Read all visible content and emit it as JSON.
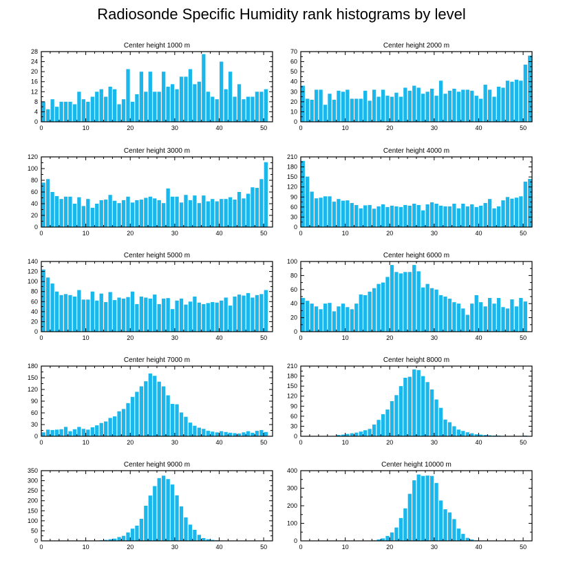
{
  "figure_title": "Radiosonde Specific Humidity rank histograms by level",
  "bar_color": "#1ab7ec",
  "chart_data": [
    {
      "type": "bar",
      "title": "Center height 1000 m",
      "xlim": [
        0,
        52
      ],
      "xticks": [
        0,
        10,
        20,
        30,
        40,
        50
      ],
      "ylim": [
        0,
        28
      ],
      "yticks": [
        0,
        4,
        8,
        12,
        16,
        20,
        24,
        28
      ],
      "values": [
        8,
        5,
        9,
        6,
        8,
        8,
        8,
        7,
        12,
        9,
        8,
        10,
        12,
        13,
        10,
        14,
        13,
        7,
        9,
        21,
        8,
        11,
        20,
        12,
        20,
        12,
        12,
        20,
        14,
        15,
        13,
        18,
        18,
        21,
        15,
        16,
        27,
        12,
        10,
        9,
        24,
        13,
        20,
        10,
        15,
        9,
        10,
        10,
        12,
        12,
        13
      ]
    },
    {
      "type": "bar",
      "title": "Center height 2000 m",
      "xlim": [
        0,
        52
      ],
      "xticks": [
        0,
        10,
        20,
        30,
        40,
        50
      ],
      "ylim": [
        0,
        70
      ],
      "yticks": [
        0,
        10,
        20,
        30,
        40,
        50,
        60,
        70
      ],
      "values": [
        36,
        23,
        22,
        32,
        32,
        17,
        28,
        22,
        31,
        30,
        32,
        23,
        23,
        23,
        31,
        21,
        32,
        25,
        32,
        26,
        25,
        29,
        25,
        34,
        31,
        36,
        34,
        28,
        30,
        33,
        26,
        41,
        28,
        31,
        33,
        30,
        32,
        32,
        31,
        26,
        23,
        37,
        32,
        25,
        35,
        34,
        41,
        40,
        42,
        41,
        57,
        66
      ]
    },
    {
      "type": "bar",
      "title": "Center height 3000 m",
      "xlim": [
        0,
        52
      ],
      "xticks": [
        0,
        10,
        20,
        30,
        40,
        50
      ],
      "ylim": [
        0,
        120
      ],
      "yticks": [
        0,
        20,
        40,
        60,
        80,
        100,
        120
      ],
      "values": [
        76,
        82,
        60,
        53,
        48,
        52,
        52,
        40,
        51,
        36,
        48,
        33,
        40,
        46,
        47,
        55,
        45,
        41,
        46,
        52,
        42,
        46,
        47,
        50,
        52,
        49,
        46,
        41,
        66,
        52,
        52,
        42,
        55,
        46,
        54,
        41,
        54,
        44,
        48,
        44,
        48,
        48,
        51,
        47,
        60,
        49,
        57,
        68,
        67,
        82,
        111
      ]
    },
    {
      "type": "bar",
      "title": "Center height 4000 m",
      "xlim": [
        0,
        52
      ],
      "xticks": [
        0,
        10,
        20,
        30,
        40,
        50
      ],
      "ylim": [
        0,
        210
      ],
      "yticks": [
        0,
        30,
        60,
        90,
        120,
        150,
        180,
        210
      ],
      "values": [
        198,
        151,
        106,
        86,
        88,
        92,
        92,
        76,
        84,
        79,
        80,
        72,
        66,
        56,
        65,
        66,
        55,
        62,
        68,
        60,
        64,
        62,
        60,
        66,
        64,
        70,
        66,
        50,
        68,
        74,
        70,
        64,
        62,
        62,
        70,
        56,
        70,
        62,
        68,
        60,
        64,
        72,
        84,
        56,
        62,
        80,
        90,
        85,
        88,
        92,
        136,
        144
      ]
    },
    {
      "type": "bar",
      "title": "Center height 5000 m",
      "xlim": [
        0,
        52
      ],
      "xticks": [
        0,
        10,
        20,
        30,
        40,
        50
      ],
      "ylim": [
        0,
        140
      ],
      "yticks": [
        0,
        20,
        40,
        60,
        80,
        100,
        120,
        140
      ],
      "values": [
        124,
        108,
        96,
        80,
        73,
        75,
        73,
        70,
        83,
        64,
        64,
        80,
        62,
        76,
        59,
        79,
        63,
        68,
        66,
        69,
        80,
        55,
        70,
        68,
        66,
        74,
        55,
        66,
        67,
        45,
        62,
        66,
        54,
        60,
        70,
        58,
        55,
        57,
        59,
        58,
        62,
        68,
        52,
        70,
        74,
        72,
        77,
        68,
        73,
        75,
        83
      ]
    },
    {
      "type": "bar",
      "title": "Center height 6000 m",
      "xlim": [
        0,
        52
      ],
      "xticks": [
        0,
        10,
        20,
        30,
        40,
        50
      ],
      "ylim": [
        0,
        100
      ],
      "yticks": [
        0,
        20,
        40,
        60,
        80,
        100
      ],
      "values": [
        48,
        44,
        40,
        36,
        32,
        40,
        41,
        29,
        36,
        40,
        35,
        32,
        40,
        53,
        52,
        57,
        62,
        68,
        70,
        78,
        95,
        85,
        83,
        85,
        85,
        95,
        86,
        63,
        68,
        62,
        60,
        52,
        50,
        47,
        42,
        40,
        33,
        24,
        40,
        52,
        42,
        36,
        48,
        40,
        48,
        35,
        33,
        46,
        36,
        48,
        43
      ]
    },
    {
      "type": "bar",
      "title": "Center height 7000 m",
      "xlim": [
        0,
        52
      ],
      "xticks": [
        0,
        10,
        20,
        30,
        40,
        50
      ],
      "ylim": [
        0,
        180
      ],
      "yticks": [
        0,
        30,
        60,
        90,
        120,
        150,
        180
      ],
      "values": [
        10,
        17,
        16,
        17,
        18,
        24,
        13,
        18,
        24,
        19,
        17,
        23,
        28,
        34,
        38,
        47,
        51,
        64,
        70,
        85,
        101,
        114,
        128,
        141,
        161,
        155,
        140,
        128,
        105,
        83,
        82,
        61,
        50,
        35,
        27,
        22,
        19,
        14,
        12,
        10,
        13,
        11,
        9,
        8,
        7,
        10,
        13,
        9,
        14,
        16,
        11
      ]
    },
    {
      "type": "bar",
      "title": "Center height 8000 m",
      "xlim": [
        0,
        52
      ],
      "xticks": [
        0,
        10,
        20,
        30,
        40,
        50
      ],
      "ylim": [
        0,
        210
      ],
      "yticks": [
        0,
        30,
        60,
        90,
        120,
        150,
        180,
        210
      ],
      "values": [
        0,
        0,
        0,
        0,
        0,
        0,
        0,
        0,
        4,
        5,
        7,
        9,
        11,
        14,
        18,
        22,
        35,
        49,
        66,
        80,
        105,
        123,
        150,
        175,
        178,
        200,
        198,
        180,
        162,
        140,
        110,
        85,
        50,
        42,
        30,
        20,
        16,
        12,
        9,
        6,
        5,
        4,
        3,
        2,
        2,
        1,
        1,
        1,
        1,
        1,
        2
      ]
    },
    {
      "type": "bar",
      "title": "Center height 9000 m",
      "xlim": [
        0,
        52
      ],
      "xticks": [
        0,
        10,
        20,
        30,
        40,
        50
      ],
      "ylim": [
        0,
        350
      ],
      "yticks": [
        0,
        50,
        100,
        150,
        200,
        250,
        300,
        350
      ],
      "values": [
        0,
        0,
        0,
        0,
        0,
        0,
        0,
        0,
        2,
        1,
        0,
        1,
        2,
        3,
        5,
        8,
        11,
        19,
        25,
        42,
        61,
        76,
        110,
        175,
        226,
        273,
        313,
        325,
        308,
        281,
        227,
        172,
        117,
        81,
        55,
        30,
        14,
        8,
        5,
        3,
        2,
        1,
        1,
        0,
        0,
        0,
        0,
        0,
        0,
        0,
        0
      ]
    },
    {
      "type": "bar",
      "title": "Center height 10000 m",
      "xlim": [
        0,
        52
      ],
      "xticks": [
        0,
        10,
        20,
        30,
        40,
        50
      ],
      "ylim": [
        0,
        400
      ],
      "yticks": [
        0,
        100,
        200,
        300,
        400
      ],
      "values": [
        0,
        0,
        0,
        0,
        0,
        0,
        0,
        0,
        0,
        0,
        0,
        0,
        0,
        0,
        0,
        1,
        3,
        8,
        14,
        28,
        48,
        76,
        130,
        185,
        268,
        345,
        378,
        370,
        372,
        370,
        330,
        230,
        180,
        162,
        124,
        70,
        40,
        17,
        8,
        3,
        1,
        1,
        0,
        0,
        0,
        0,
        0,
        0,
        0,
        0,
        0
      ]
    }
  ]
}
